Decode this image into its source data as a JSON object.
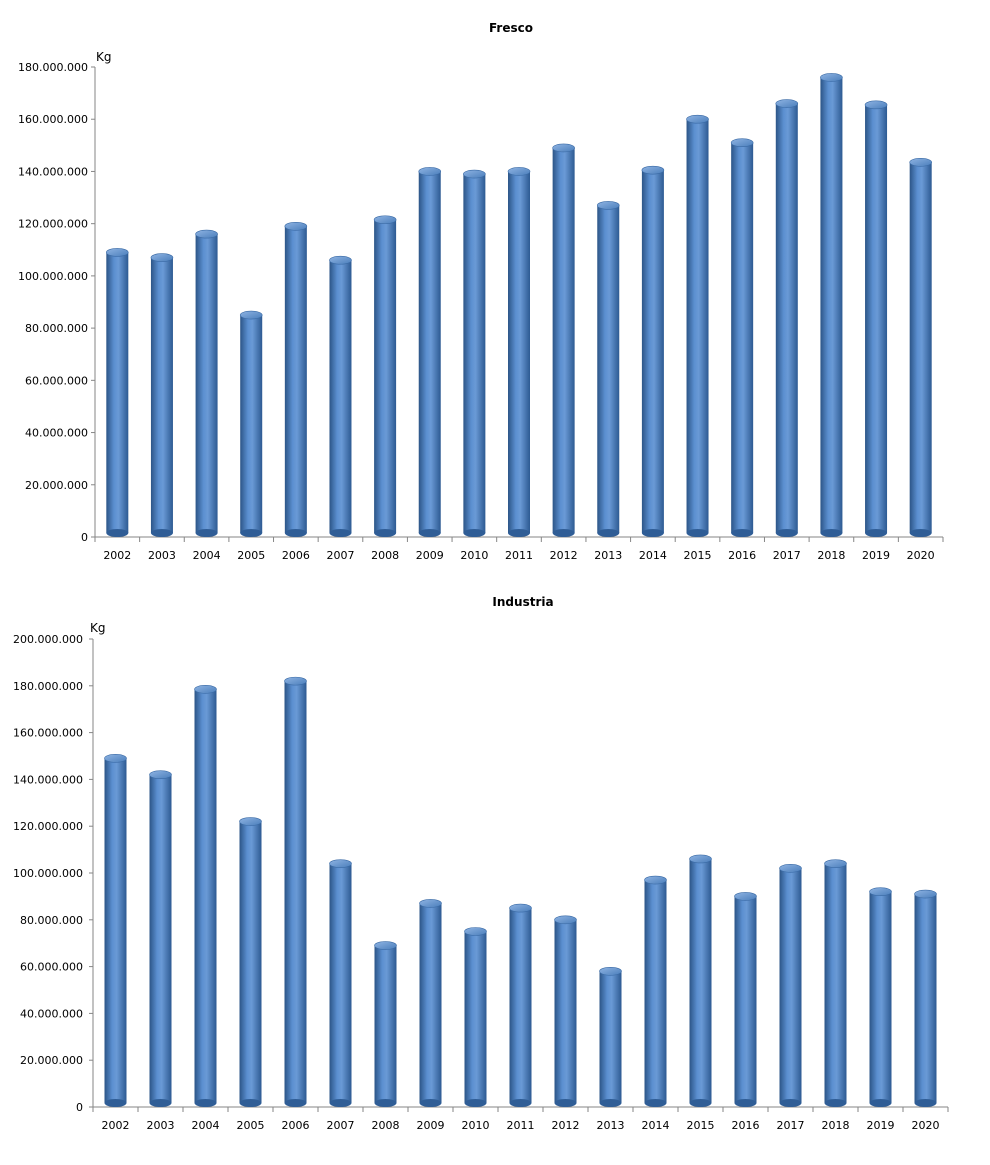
{
  "chart_data": [
    {
      "type": "bar",
      "title": "Fresco",
      "ylabel": "Kg",
      "xlabel": "",
      "ylim": [
        0,
        180000000
      ],
      "ytick_step": 20000000,
      "ytick_labels": [
        "0",
        "20.000.000",
        "40.000.000",
        "60.000.000",
        "80.000.000",
        "100.000.000",
        "120.000.000",
        "140.000.000",
        "160.000.000",
        "180.000.000"
      ],
      "grid": false,
      "categories": [
        "2002",
        "2003",
        "2004",
        "2005",
        "2006",
        "2007",
        "2008",
        "2009",
        "2010",
        "2011",
        "2012",
        "2013",
        "2014",
        "2015",
        "2016",
        "2017",
        "2018",
        "2019",
        "2020"
      ],
      "values": [
        109000000,
        107000000,
        116000000,
        85000000,
        119000000,
        106000000,
        121500000,
        140000000,
        139000000,
        140000000,
        149000000,
        127000000,
        140500000,
        160000000,
        151000000,
        166000000,
        176000000,
        165500000,
        143500000
      ],
      "color": "#4a7ebb"
    },
    {
      "type": "bar",
      "title": "Industria",
      "ylabel": "Kg",
      "xlabel": "",
      "ylim": [
        0,
        200000000
      ],
      "ytick_step": 20000000,
      "ytick_labels": [
        "0",
        "20.000.000",
        "40.000.000",
        "60.000.000",
        "80.000.000",
        "100.000.000",
        "120.000.000",
        "140.000.000",
        "160.000.000",
        "180.000.000",
        "200.000.000"
      ],
      "grid": false,
      "categories": [
        "2002",
        "2003",
        "2004",
        "2005",
        "2006",
        "2007",
        "2008",
        "2009",
        "2010",
        "2011",
        "2012",
        "2013",
        "2014",
        "2015",
        "2016",
        "2017",
        "2018",
        "2019",
        "2020"
      ],
      "values": [
        149000000,
        142000000,
        178500000,
        122000000,
        182000000,
        104000000,
        69000000,
        87000000,
        75000000,
        85000000,
        80000000,
        58000000,
        97000000,
        106000000,
        90000000,
        102000000,
        104000000,
        92000000,
        91000000
      ],
      "color": "#4a7ebb"
    }
  ]
}
